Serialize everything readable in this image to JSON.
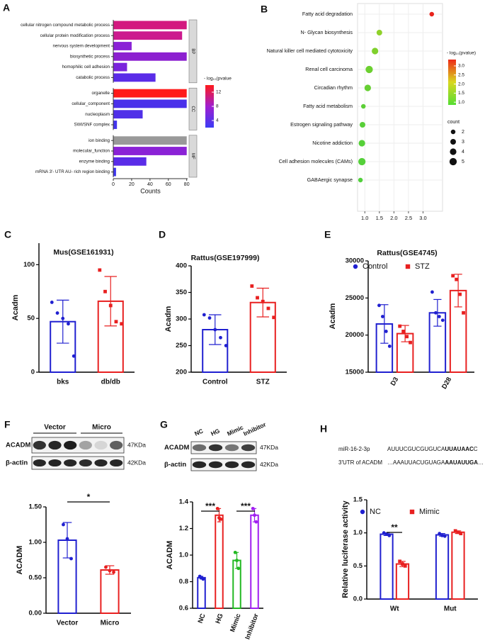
{
  "chart_data": [
    {
      "type": "barh",
      "panel": "A",
      "categories": [
        "cellular nitrogen compound metabolic process",
        "cellular protein modification process",
        "nervous system development",
        "biosynthetic process",
        "homophilic cell adhesion",
        "catabolic process",
        "organelle",
        "cellular_component",
        "nucleoplasm",
        "SWI/SNF complex",
        "ion binding",
        "molecular_function",
        "enzyme binding",
        "mRNA 3'- UTR AU- rich region binding"
      ],
      "values": [
        80,
        75,
        20,
        80,
        15,
        46,
        80,
        80,
        32,
        4,
        80,
        80,
        36,
        3
      ],
      "colors": [
        "#d3187f",
        "#cc1a8e",
        "#8a22d6",
        "#8c20d0",
        "#7a24dc",
        "#5a2ce8",
        "#ff1a1a",
        "#4a30ea",
        "#5030e8",
        "#4434ee",
        "#999999",
        "#8a22d6",
        "#5a2ce8",
        "#3f37ef"
      ],
      "groups": [
        "BP",
        "BP",
        "BP",
        "BP",
        "BP",
        "BP",
        "CC",
        "CC",
        "CC",
        "CC",
        "MF",
        "MF",
        "MF",
        "MF"
      ],
      "xlim": [
        0,
        81
      ],
      "xticks": [
        0,
        20,
        40,
        60,
        80
      ],
      "xlabel": "Counts",
      "colorbar": {
        "title": "- log₁₀(pvalue",
        "ticks": [
          12,
          8,
          4
        ],
        "range": [
          2,
          14
        ],
        "colors": [
          "#3b3bf5",
          "#a01fd0",
          "#ff1a1a"
        ]
      }
    },
    {
      "type": "bubble",
      "panel": "B",
      "grid": true,
      "categories": [
        "Fatty acid degradation",
        "N- Glycan biosynthesis",
        "Natural killer cell mediated cytotoxicity",
        "Renal cell carcinoma",
        "Circadian rhythm",
        "Fatty acid metabolism",
        "Estrogen signaling pathway",
        "Nicotine addiction",
        "Cell adhesion molecules (CAMs)",
        "GABAergic synapse"
      ],
      "values": [
        3.3,
        1.5,
        1.35,
        1.15,
        1.1,
        0.95,
        0.92,
        0.9,
        0.9,
        0.85
      ],
      "sizes": [
        2,
        3,
        4,
        5,
        4,
        2,
        3,
        4,
        5,
        2
      ],
      "colors": [
        "#e8231c",
        "#8fd12a",
        "#7fd02c",
        "#6cd030",
        "#66cf32",
        "#5ccf36",
        "#58cf38",
        "#56d038",
        "#55d03a",
        "#52d03c"
      ],
      "xlim": [
        0.75,
        3.67
      ],
      "xticks": [
        {
          "value": 1,
          "label": "1.0"
        },
        {
          "value": 1.5,
          "label": "1.5"
        },
        {
          "value": 2,
          "label": "2.0"
        },
        {
          "value": 2.5,
          "label": "2.5"
        },
        {
          "value": 3,
          "label": "3.0"
        }
      ],
      "colorbar": {
        "title": "- log₁₀(pvalue)",
        "ticks": [
          {
            "value": 3,
            "label": "3.0"
          },
          2.5,
          {
            "value": 2,
            "label": "2.0"
          },
          1.5,
          {
            "value": 1,
            "label": "1.0"
          }
        ],
        "range": [
          0.85,
          3.35
        ],
        "colors": [
          "#55dd33",
          "#d8d820",
          "#ee2a18"
        ]
      },
      "size_legend": {
        "title": "count",
        "values": [
          2,
          3,
          4,
          5
        ]
      }
    },
    {
      "type": "bar",
      "panel": "C",
      "title": "Mus(GSE161931)",
      "ylabel": "Acadm",
      "categories": [
        "bks",
        "db/db"
      ],
      "values": [
        47,
        66
      ],
      "errors": [
        20,
        23
      ],
      "points": [
        [
          65,
          55,
          50,
          45,
          15
        ],
        [
          95,
          75,
          62,
          47,
          45
        ]
      ],
      "colors": [
        "#2020d0",
        "#e82020"
      ],
      "markers": [
        "circle",
        "square"
      ],
      "ylim": [
        0,
        120
      ],
      "yticks": [
        0,
        50,
        100
      ]
    },
    {
      "type": "bar",
      "panel": "D",
      "title": "Rattus(GSE197999)",
      "ylabel": "Acadm",
      "categories": [
        "Control",
        "STZ"
      ],
      "values": [
        280,
        331
      ],
      "errors": [
        28,
        27
      ],
      "points": [
        [
          308,
          302,
          280,
          265,
          250
        ],
        [
          362,
          340,
          333,
          320,
          303
        ]
      ],
      "colors": [
        "#2020d0",
        "#e82020"
      ],
      "markers": [
        "circle",
        "square"
      ],
      "ylim": [
        200,
        400
      ],
      "yticks": [
        200,
        250,
        300,
        350,
        400
      ]
    },
    {
      "type": "bar",
      "panel": "E",
      "title": "Rattus(GSE4745)",
      "ylabel": "Acadm",
      "categories": [
        "D3",
        "D28"
      ],
      "series": [
        {
          "name": "Control",
          "color": "#2020d0",
          "marker": "circle",
          "values": [
            21500,
            23000
          ],
          "errors": [
            2600,
            1800
          ],
          "points": [
            [
              24000,
              22500,
              20500,
              18500
            ],
            [
              25800,
              23000,
              22500,
              22000
            ]
          ]
        },
        {
          "name": "STZ",
          "color": "#e82020",
          "marker": "square",
          "values": [
            20200,
            26000
          ],
          "errors": [
            1100,
            2200
          ],
          "points": [
            [
              21200,
              20500,
              19800,
              19000
            ],
            [
              28000,
              27500,
              25500,
              23000
            ]
          ]
        }
      ],
      "ylim": [
        15000,
        30000
      ],
      "yticks": [
        15000,
        20000,
        25000,
        30000
      ]
    },
    {
      "type": "bar",
      "panel": "F",
      "blot": {
        "lanes": [
          "Vector",
          "Micro"
        ],
        "bands": [
          "ACADM",
          "β-actin"
        ],
        "sizes": [
          "47KDa",
          "42KDa"
        ]
      },
      "ylabel": "ACADM",
      "categories": [
        "Vector",
        "Micro"
      ],
      "values": [
        1.03,
        0.61
      ],
      "errors": [
        0.25,
        0.06
      ],
      "points": [
        [
          1.25,
          1.05,
          0.77
        ],
        [
          0.65,
          0.6,
          0.58
        ]
      ],
      "colors": [
        "#2020d0",
        "#e82020"
      ],
      "markers": [
        "circle",
        "circle"
      ],
      "ylim": [
        0,
        1.5
      ],
      "yticks": [
        {
          "value": 0,
          "label": "0.00"
        },
        {
          "value": 0.5,
          "label": "0.50"
        },
        {
          "value": 1,
          "label": "1.00"
        },
        {
          "value": 1.5,
          "label": "1.50"
        }
      ],
      "annotations": [
        "*"
      ]
    },
    {
      "type": "bar",
      "panel": "G",
      "blot": {
        "lanes": [
          "NC",
          "HG",
          "Mimic",
          "Inhibitor"
        ],
        "bands": [
          "ACADM",
          "β-actin"
        ],
        "sizes": [
          "47KDa",
          "42KDa"
        ]
      },
      "ylabel": "ACADM",
      "categories": [
        "NC",
        "HG",
        "Mimic",
        "Inhibitor"
      ],
      "values": [
        0.83,
        1.3,
        0.96,
        1.3
      ],
      "errors": [
        0.01,
        0.05,
        0.06,
        0.05
      ],
      "points": [
        [
          0.84,
          0.83,
          0.82
        ],
        [
          1.35,
          1.28,
          1.27
        ],
        [
          1.02,
          0.96,
          0.9
        ],
        [
          1.35,
          1.3,
          1.25
        ]
      ],
      "colors": [
        "#2020d0",
        "#e82020",
        "#22b822",
        "#a020f0"
      ],
      "markers": [
        "circle",
        "circle",
        "circle",
        "circle"
      ],
      "ylim": [
        0.6,
        1.4
      ],
      "yticks": [
        0.6,
        0.8,
        {
          "value": 1,
          "label": "1.0"
        },
        1.2,
        1.4
      ],
      "annotations": [
        "***",
        "***"
      ]
    },
    {
      "type": "bar",
      "panel": "H",
      "sequences": [
        {
          "name": "miR-16-2-3p",
          "parts": [
            "AUUUCGUCGUGUCA",
            "UUAUAAC",
            "C"
          ]
        },
        {
          "name": "3'UTR of ACADM",
          "parts": [
            "…AAAUUACUGUAGA",
            "AAUAUUGA",
            "…"
          ]
        }
      ],
      "ylabel": "Relative luciferase activity",
      "categories": [
        "Wt",
        "Mut"
      ],
      "series": [
        {
          "name": "NC",
          "color": "#2020d0",
          "marker": "circle",
          "values": [
            0.98,
            0.97
          ],
          "errors": [
            0.02,
            0.02
          ],
          "points": [
            [
              1,
              0.98,
              0.96
            ],
            [
              0.99,
              0.96,
              0.95
            ]
          ]
        },
        {
          "name": "Mimic",
          "color": "#e82020",
          "marker": "square",
          "values": [
            0.53,
            1.01
          ],
          "errors": [
            0.04,
            0.02
          ],
          "points": [
            [
              0.57,
              0.53,
              0.5
            ],
            [
              1.03,
              1.01,
              0.99
            ]
          ]
        }
      ],
      "ylim": [
        0,
        1.5
      ],
      "yticks": [
        {
          "value": 0,
          "label": "0.0"
        },
        0.5,
        {
          "value": 1,
          "label": "1.0"
        },
        1.5
      ],
      "annotations": [
        "**"
      ]
    }
  ]
}
